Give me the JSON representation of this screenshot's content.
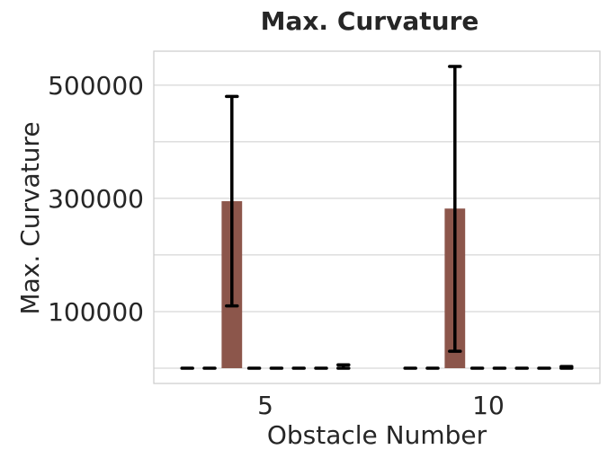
{
  "chart_data": {
    "type": "bar",
    "title": "Max. Curvature",
    "xlabel": "Obstacle Number",
    "ylabel": "Max. Curvature",
    "categories": [
      "5",
      "10"
    ],
    "y_ticks": [
      100000,
      300000,
      500000
    ],
    "y_tick_labels": [
      "100000",
      "300000",
      "500000"
    ],
    "ylim": [
      -27000,
      560000
    ],
    "grid": true,
    "bar_color": "#8c564b",
    "errorbar_color": "#000000",
    "series_count": 8,
    "highlighted_series_index": 2,
    "series": [
      {
        "values": [
          0,
          0
        ],
        "error_low": [
          0,
          0
        ],
        "error_high": [
          0,
          0
        ]
      },
      {
        "values": [
          0,
          0
        ],
        "error_low": [
          0,
          0
        ],
        "error_high": [
          0,
          0
        ]
      },
      {
        "values": [
          295000,
          282000
        ],
        "error_low": [
          110000,
          30000
        ],
        "error_high": [
          480000,
          533000
        ]
      },
      {
        "values": [
          0,
          0
        ],
        "error_low": [
          0,
          0
        ],
        "error_high": [
          0,
          0
        ]
      },
      {
        "values": [
          0,
          0
        ],
        "error_low": [
          0,
          0
        ],
        "error_high": [
          0,
          0
        ]
      },
      {
        "values": [
          0,
          0
        ],
        "error_low": [
          0,
          0
        ],
        "error_high": [
          0,
          0
        ]
      },
      {
        "values": [
          0,
          0
        ],
        "error_low": [
          0,
          0
        ],
        "error_high": [
          0,
          0
        ]
      },
      {
        "values": [
          3000,
          1500
        ],
        "error_low": [
          0,
          0
        ],
        "error_high": [
          6000,
          3000
        ]
      }
    ]
  }
}
